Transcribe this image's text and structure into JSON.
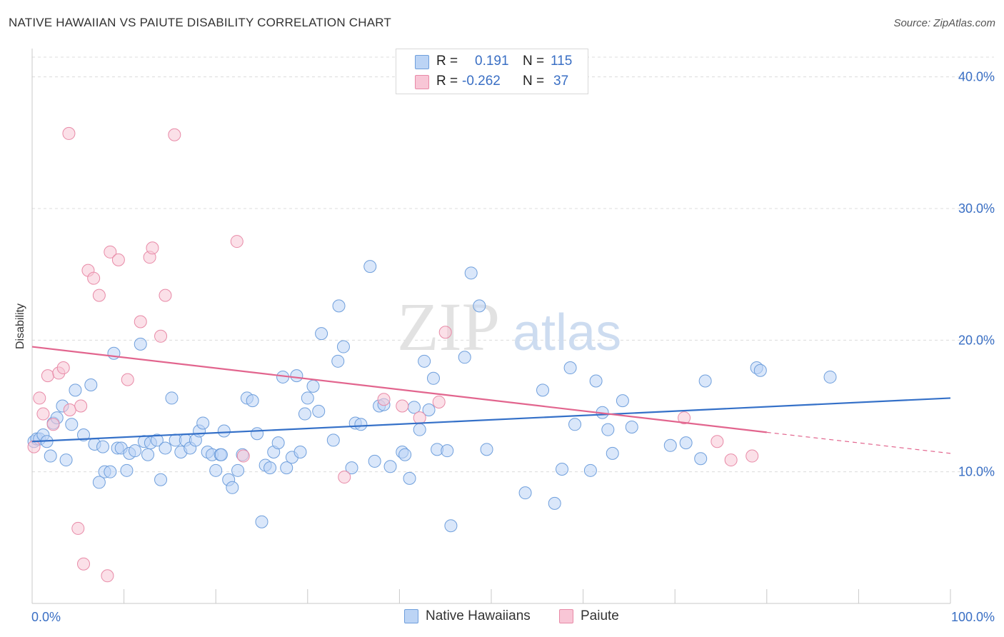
{
  "header": {
    "title": "NATIVE HAWAIIAN VS PAIUTE DISABILITY CORRELATION CHART",
    "source": "Source: ZipAtlas.com"
  },
  "legend": {
    "rows": [
      {
        "r_label": "R =",
        "r_value": "0.191",
        "n_label": "N =",
        "n_value": "115"
      },
      {
        "r_label": "R =",
        "r_value": "-0.262",
        "n_label": "N =",
        "n_value": "37"
      }
    ]
  },
  "watermark": {
    "zip": "ZIP",
    "atlas": "atlas"
  },
  "colors": {
    "blue_fill": "#bcd4f5",
    "blue_stroke": "#6f9fdc",
    "blue_line": "#3470c8",
    "pink_fill": "#f8c6d6",
    "pink_stroke": "#e88aa7",
    "pink_line": "#e2658e",
    "axis_label": "#3a6fc4",
    "grid": "#dcdcdc"
  },
  "chart_data": {
    "type": "scatter",
    "title": "NATIVE HAWAIIAN VS PAIUTE DISABILITY CORRELATION CHART",
    "xlabel": "",
    "ylabel": "Disability",
    "xlim": [
      0,
      100
    ],
    "ylim": [
      0,
      41.5
    ],
    "x_tick_labels": [
      "0.0%",
      "100.0%"
    ],
    "y_ticks": [
      10,
      20,
      30,
      40
    ],
    "y_tick_labels": [
      "10.0%",
      "20.0%",
      "30.0%",
      "40.0%"
    ],
    "grid": "horizontal dashed",
    "legend_position": "bottom-center",
    "series": [
      {
        "name": "Native Hawaiians",
        "color": "#6f9fdc",
        "trend": {
          "x": [
            0,
            100
          ],
          "y": [
            12.3,
            15.6
          ],
          "style": "solid"
        },
        "points": [
          [
            0.2,
            12.3
          ],
          [
            0.5,
            12.5
          ],
          [
            0.8,
            12.5
          ],
          [
            1.2,
            12.8
          ],
          [
            1.6,
            12.3
          ],
          [
            2.3,
            13.7
          ],
          [
            2.7,
            14.1
          ],
          [
            3.3,
            15.0
          ],
          [
            3.7,
            10.9
          ],
          [
            4.3,
            13.6
          ],
          [
            4.7,
            16.2
          ],
          [
            5.6,
            12.8
          ],
          [
            6.4,
            16.6
          ],
          [
            6.8,
            12.1
          ],
          [
            7.3,
            9.2
          ],
          [
            7.7,
            11.9
          ],
          [
            7.9,
            10.0
          ],
          [
            8.5,
            10.0
          ],
          [
            8.9,
            19.0
          ],
          [
            9.3,
            11.8
          ],
          [
            9.7,
            11.8
          ],
          [
            10.3,
            10.1
          ],
          [
            10.6,
            11.4
          ],
          [
            11.2,
            11.6
          ],
          [
            11.8,
            19.7
          ],
          [
            12.2,
            12.3
          ],
          [
            12.6,
            11.3
          ],
          [
            12.9,
            12.2
          ],
          [
            13.6,
            12.4
          ],
          [
            14.0,
            9.4
          ],
          [
            14.5,
            11.8
          ],
          [
            15.2,
            15.6
          ],
          [
            15.6,
            12.4
          ],
          [
            16.2,
            11.5
          ],
          [
            16.7,
            12.4
          ],
          [
            17.2,
            11.8
          ],
          [
            17.8,
            12.4
          ],
          [
            18.2,
            13.1
          ],
          [
            18.6,
            13.7
          ],
          [
            19.1,
            11.5
          ],
          [
            19.6,
            11.3
          ],
          [
            20.0,
            10.1
          ],
          [
            20.5,
            11.3
          ],
          [
            20.9,
            13.1
          ],
          [
            21.4,
            9.4
          ],
          [
            21.8,
            8.8
          ],
          [
            22.4,
            10.1
          ],
          [
            22.9,
            11.3
          ],
          [
            23.4,
            15.6
          ],
          [
            24.0,
            15.4
          ],
          [
            24.5,
            12.9
          ],
          [
            25.0,
            6.2
          ],
          [
            25.4,
            10.5
          ],
          [
            25.9,
            10.3
          ],
          [
            26.3,
            11.5
          ],
          [
            26.8,
            12.2
          ],
          [
            27.3,
            17.2
          ],
          [
            27.7,
            10.3
          ],
          [
            28.3,
            11.1
          ],
          [
            28.8,
            17.3
          ],
          [
            29.2,
            11.5
          ],
          [
            29.7,
            14.4
          ],
          [
            30.0,
            15.6
          ],
          [
            30.6,
            16.5
          ],
          [
            31.2,
            14.6
          ],
          [
            31.5,
            20.5
          ],
          [
            32.8,
            12.4
          ],
          [
            33.3,
            18.4
          ],
          [
            33.9,
            19.5
          ],
          [
            34.8,
            10.3
          ],
          [
            35.2,
            13.7
          ],
          [
            35.8,
            13.6
          ],
          [
            37.3,
            10.8
          ],
          [
            37.8,
            15.0
          ],
          [
            38.3,
            15.1
          ],
          [
            39.0,
            10.4
          ],
          [
            40.3,
            11.5
          ],
          [
            40.6,
            11.3
          ],
          [
            41.1,
            9.5
          ],
          [
            41.6,
            14.9
          ],
          [
            42.2,
            13.2
          ],
          [
            42.7,
            18.4
          ],
          [
            43.2,
            14.7
          ],
          [
            43.7,
            17.1
          ],
          [
            44.1,
            11.7
          ],
          [
            45.6,
            5.9
          ],
          [
            47.1,
            18.7
          ],
          [
            47.8,
            25.1
          ],
          [
            48.7,
            22.6
          ],
          [
            53.7,
            8.4
          ],
          [
            55.6,
            16.2
          ],
          [
            56.9,
            7.6
          ],
          [
            57.7,
            10.2
          ],
          [
            58.6,
            17.9
          ],
          [
            59.1,
            13.6
          ],
          [
            60.8,
            10.1
          ],
          [
            61.4,
            16.9
          ],
          [
            62.1,
            14.5
          ],
          [
            62.7,
            13.2
          ],
          [
            63.2,
            11.4
          ],
          [
            64.3,
            15.4
          ],
          [
            65.3,
            13.4
          ],
          [
            69.5,
            12.0
          ],
          [
            71.2,
            12.2
          ],
          [
            72.8,
            11.0
          ],
          [
            73.3,
            16.9
          ],
          [
            78.9,
            17.9
          ],
          [
            79.3,
            17.7
          ],
          [
            86.9,
            17.2
          ],
          [
            33.4,
            22.6
          ],
          [
            36.8,
            25.6
          ],
          [
            20.6,
            11.3
          ],
          [
            45.2,
            11.6
          ],
          [
            49.5,
            11.7
          ],
          [
            2.0,
            11.2
          ]
        ]
      },
      {
        "name": "Paiute",
        "color": "#e88aa7",
        "trend": {
          "x": [
            0,
            80
          ],
          "y": [
            19.5,
            13.0
          ],
          "style": "solid",
          "dashed_extension": {
            "x": [
              80,
              100
            ],
            "y": [
              13.0,
              11.4
            ]
          }
        },
        "points": [
          [
            0.2,
            11.9
          ],
          [
            0.8,
            15.6
          ],
          [
            1.2,
            14.4
          ],
          [
            1.7,
            17.3
          ],
          [
            2.3,
            13.6
          ],
          [
            2.9,
            17.5
          ],
          [
            3.4,
            17.9
          ],
          [
            4.1,
            14.7
          ],
          [
            5.0,
            5.7
          ],
          [
            5.3,
            15.0
          ],
          [
            5.6,
            3.0
          ],
          [
            6.1,
            25.3
          ],
          [
            6.7,
            24.7
          ],
          [
            7.3,
            23.4
          ],
          [
            8.2,
            2.1
          ],
          [
            8.5,
            26.7
          ],
          [
            9.4,
            26.1
          ],
          [
            10.4,
            17.0
          ],
          [
            11.8,
            21.4
          ],
          [
            12.8,
            26.3
          ],
          [
            13.1,
            27.0
          ],
          [
            14.0,
            20.3
          ],
          [
            14.5,
            23.4
          ],
          [
            15.5,
            35.6
          ],
          [
            22.3,
            27.5
          ],
          [
            23.0,
            11.2
          ],
          [
            34.0,
            9.6
          ],
          [
            38.3,
            15.5
          ],
          [
            40.3,
            15.0
          ],
          [
            42.2,
            14.1
          ],
          [
            44.3,
            15.3
          ],
          [
            45.0,
            20.6
          ],
          [
            71.0,
            14.1
          ],
          [
            74.6,
            12.3
          ],
          [
            76.1,
            10.9
          ],
          [
            78.4,
            11.2
          ],
          [
            4.0,
            35.7
          ]
        ]
      }
    ]
  },
  "bottom_legend": {
    "items": [
      {
        "label": "Native Hawaiians"
      },
      {
        "label": "Paiute"
      }
    ]
  }
}
